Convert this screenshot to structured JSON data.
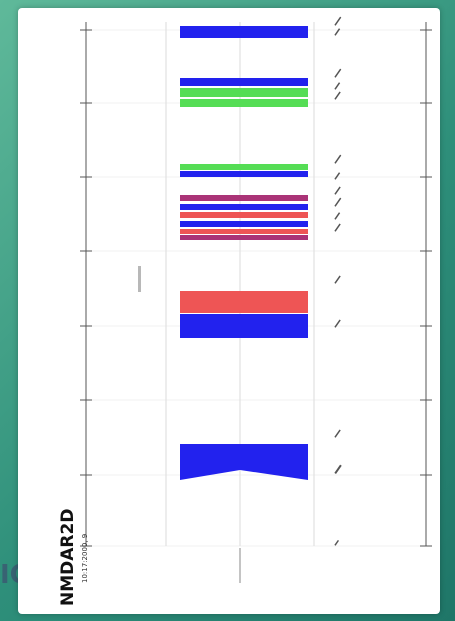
{
  "title": "NMDAR2D",
  "subtitle": "10:17:2000, 9",
  "background_fragment": "IC",
  "colors": {
    "blue": "#2222ee",
    "green": "#55dd55",
    "red": "#ee5555",
    "purple": "#aa3377",
    "axis": "#555555",
    "guide": "#cccccc"
  }
}
